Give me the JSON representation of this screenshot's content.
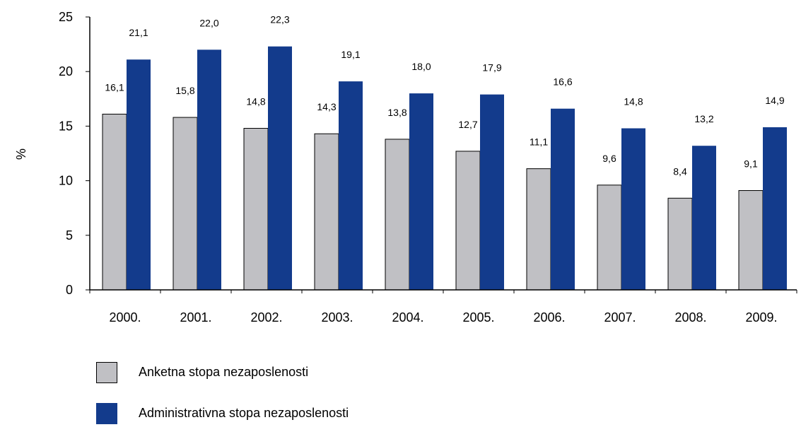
{
  "chart_data": {
    "type": "bar",
    "categories": [
      "2000.",
      "2001.",
      "2002.",
      "2003.",
      "2004.",
      "2005.",
      "2006.",
      "2007.",
      "2008.",
      "2009."
    ],
    "series": [
      {
        "name": "Anketna stopa nezaposlenosti",
        "values": [
          16.1,
          15.8,
          14.8,
          14.3,
          13.8,
          12.7,
          11.1,
          9.6,
          8.4,
          9.1
        ],
        "labels": [
          "16,1",
          "15,8",
          "14,8",
          "14,3",
          "13,8",
          "12,7",
          "11,1",
          "9,6",
          "8,4",
          "9,1"
        ],
        "color": "#c0c0c4"
      },
      {
        "name": "Administrativna stopa nezaposlenosti",
        "values": [
          21.1,
          22.0,
          22.3,
          19.1,
          18.0,
          17.9,
          16.6,
          14.8,
          13.2,
          14.9
        ],
        "labels": [
          "21,1",
          "22,0",
          "22,3",
          "19,1",
          "18,0",
          "17,9",
          "16,6",
          "14,8",
          "13,2",
          "14,9"
        ],
        "color": "#133b8c"
      }
    ],
    "ylabel": "%",
    "ylim": [
      0,
      25
    ],
    "yticks": [
      0,
      5,
      10,
      15,
      20,
      25
    ],
    "ytick_labels": [
      "0",
      "5",
      "10",
      "15",
      "20",
      "25"
    ],
    "grid": false,
    "legend_position": "bottom-left"
  }
}
